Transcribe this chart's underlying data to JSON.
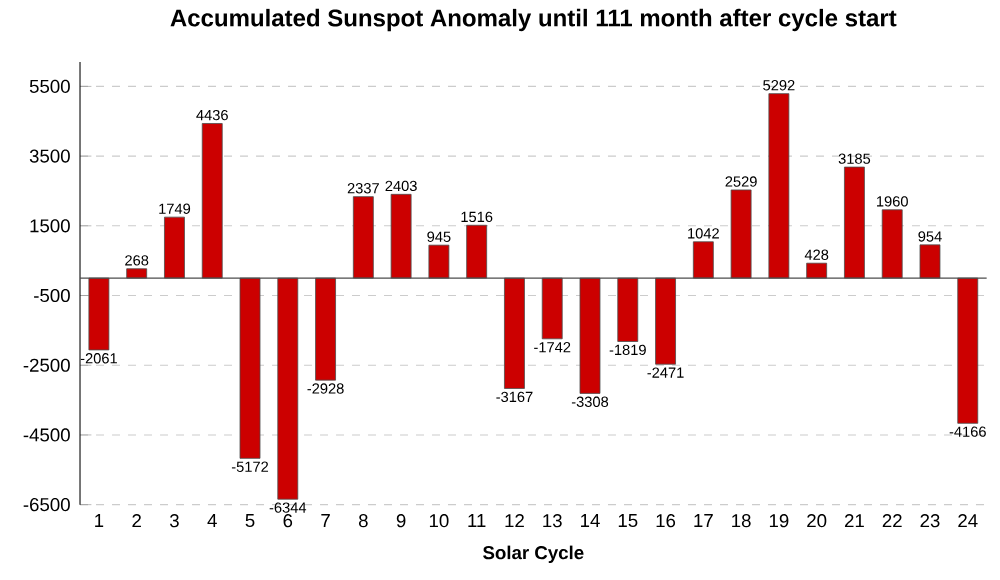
{
  "chart_data": {
    "type": "bar",
    "title": "Accumulated Sunspot Anomaly until 111 month after cycle start",
    "xlabel": "Solar Cycle",
    "categories": [
      "1",
      "2",
      "3",
      "4",
      "5",
      "6",
      "7",
      "8",
      "9",
      "10",
      "11",
      "12",
      "13",
      "14",
      "15",
      "16",
      "17",
      "18",
      "19",
      "20",
      "21",
      "22",
      "23",
      "24"
    ],
    "values": [
      -2061,
      268,
      1749,
      4436,
      -5172,
      -6344,
      -2928,
      2337,
      2403,
      945,
      1516,
      -3167,
      -1742,
      -3308,
      -1819,
      -2471,
      1042,
      2529,
      5292,
      428,
      3185,
      1960,
      954,
      -4166
    ],
    "color": "#cc0000",
    "ylim": [
      -6500,
      6200
    ],
    "yticks": [
      -6500,
      -4500,
      -2500,
      -500,
      1500,
      3500,
      5500
    ],
    "grid": "y",
    "value_labels": [
      "-2061",
      "268",
      "1749",
      "4436",
      "-5172",
      "-6344",
      "-2928",
      "2337",
      "2403",
      "945",
      "1516",
      "-3167",
      "-1742",
      "-3308",
      "-1819",
      "-2471",
      "1042",
      "2529",
      "5292",
      "428",
      "3185",
      "1960",
      "954",
      "-4166"
    ]
  }
}
